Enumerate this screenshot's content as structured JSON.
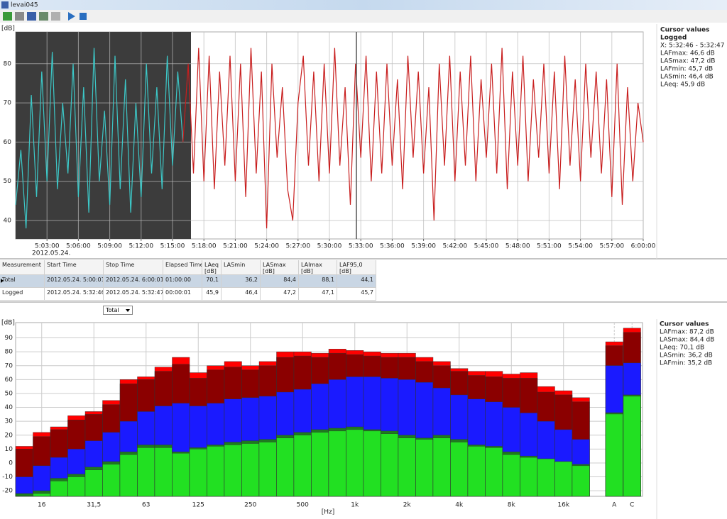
{
  "window": {
    "title": "levai045"
  },
  "chart_data": [
    {
      "type": "line",
      "y_label": "[dB]",
      "date_label": "2012.05.24.",
      "x": [
        0,
        0.5,
        1,
        1.5,
        2,
        2.5,
        3,
        3.5,
        4,
        4.5,
        5,
        5.5,
        6,
        6.5,
        7,
        7.5,
        8,
        8.5,
        9,
        9.5,
        10,
        10.5,
        11,
        11.5,
        12,
        12.5,
        13,
        13.5,
        14,
        14.5,
        15,
        15.5,
        16,
        16.5,
        17,
        17.5,
        18,
        18.5,
        19,
        19.5,
        20,
        20.5,
        21,
        21.5,
        22,
        22.5,
        23,
        23.5,
        24,
        24.5,
        25,
        25.5,
        26,
        26.5,
        27,
        27.5,
        28,
        28.5,
        29,
        29.5,
        30,
        30.5,
        31,
        31.5,
        32,
        32.5,
        33,
        33.5,
        34,
        34.5,
        35,
        35.5,
        36,
        36.5,
        37,
        37.5,
        38,
        38.5,
        39,
        39.5,
        40,
        40.5,
        41,
        41.5,
        42,
        42.5,
        43,
        43.5,
        44,
        44.5,
        45,
        45.5,
        46,
        46.5,
        47,
        47.5,
        48,
        48.5,
        49,
        49.5,
        50,
        50.5,
        51,
        51.5,
        52,
        52.5,
        53,
        53.5,
        54,
        54.5,
        55,
        55.5,
        56,
        56.5,
        57,
        57.5,
        58,
        58.5,
        59,
        59.5,
        60
      ],
      "xlim": [
        0,
        60
      ],
      "xticks": [
        {
          "value": 3,
          "label": "5:03:00"
        },
        {
          "value": 6,
          "label": "5:06:00"
        },
        {
          "value": 9,
          "label": "5:09:00"
        },
        {
          "value": 12,
          "label": "5:12:00"
        },
        {
          "value": 15,
          "label": "5:15:00"
        },
        {
          "value": 18,
          "label": "5:18:00"
        },
        {
          "value": 21,
          "label": "5:21:00"
        },
        {
          "value": 24,
          "label": "5:24:00"
        },
        {
          "value": 27,
          "label": "5:27:00"
        },
        {
          "value": 30,
          "label": "5:30:00"
        },
        {
          "value": 33,
          "label": "5:33:00"
        },
        {
          "value": 36,
          "label": "5:36:00"
        },
        {
          "value": 39,
          "label": "5:39:00"
        },
        {
          "value": 42,
          "label": "5:42:00"
        },
        {
          "value": 45,
          "label": "5:45:00"
        },
        {
          "value": 48,
          "label": "5:48:00"
        },
        {
          "value": 51,
          "label": "5:51:00"
        },
        {
          "value": 54,
          "label": "5:54:00"
        },
        {
          "value": 57,
          "label": "5:57:00"
        },
        {
          "value": 60,
          "label": "6:00:00"
        }
      ],
      "ylim": [
        35.3,
        88.1
      ],
      "yticks": [
        40,
        50,
        60,
        70,
        80
      ],
      "grid": true,
      "series": [
        {
          "color": "#3cc8c8",
          "values": [
            44,
            58,
            38,
            72,
            46,
            78,
            50,
            83,
            48,
            70,
            52,
            80,
            46,
            74,
            42,
            84,
            50,
            68,
            44,
            82,
            48,
            76,
            42,
            70,
            46,
            80,
            52,
            74,
            48,
            82,
            54,
            78,
            60,
            null,
            null,
            null,
            null,
            null,
            null,
            null,
            null,
            null,
            null,
            null,
            null,
            null,
            null,
            null,
            null,
            null,
            null,
            null,
            null,
            null,
            null,
            null,
            null,
            null,
            null,
            null,
            null,
            null,
            null,
            null,
            null,
            null,
            null,
            null,
            null,
            null,
            null,
            null,
            null,
            null,
            null,
            null,
            null,
            null,
            null,
            null,
            null,
            null,
            null,
            null,
            null,
            null,
            null,
            null,
            null,
            null,
            null,
            null,
            null,
            null,
            null,
            null,
            null,
            null,
            null,
            null,
            null,
            null,
            null,
            null,
            null,
            null,
            null,
            null,
            null,
            null,
            null,
            null,
            null,
            null,
            null,
            null,
            null,
            null,
            null,
            null,
            null
          ]
        },
        {
          "color": "#c81e1e",
          "values": [
            null,
            null,
            null,
            null,
            null,
            null,
            null,
            null,
            null,
            null,
            null,
            null,
            null,
            null,
            null,
            null,
            null,
            null,
            null,
            null,
            null,
            null,
            null,
            null,
            null,
            null,
            null,
            null,
            null,
            null,
            null,
            null,
            60,
            80,
            52,
            84,
            50,
            82,
            48,
            78,
            54,
            82,
            50,
            80,
            46,
            84,
            52,
            78,
            38,
            80,
            56,
            74,
            48,
            40,
            70,
            82,
            54,
            78,
            50,
            80,
            52,
            84,
            54,
            74,
            44,
            80,
            56,
            82,
            50,
            78,
            52,
            80,
            54,
            76,
            48,
            82,
            56,
            78,
            52,
            74,
            40,
            80,
            54,
            82,
            50,
            78,
            54,
            82,
            50,
            76,
            56,
            80,
            52,
            84,
            48,
            78,
            54,
            82,
            50,
            76,
            56,
            80,
            52,
            78,
            48,
            82,
            54,
            76,
            50,
            80,
            56,
            78,
            52,
            76,
            46,
            80,
            44,
            74,
            50,
            70,
            60
          ]
        }
      ]
    },
    {
      "type": "bar",
      "y_label": "[dB]",
      "x_label": "[Hz]",
      "categories": [
        null,
        "16",
        null,
        null,
        "31,5",
        null,
        null,
        "63",
        null,
        null,
        "125",
        null,
        null,
        "250",
        null,
        null,
        "500",
        null,
        null,
        "1k",
        null,
        null,
        "2k",
        null,
        null,
        "4k",
        null,
        null,
        "8k",
        null,
        null,
        "16k",
        null,
        "A",
        "C"
      ],
      "ylim": [
        -24,
        101
      ],
      "yticks": [
        -20,
        -10,
        0,
        10,
        20,
        30,
        40,
        50,
        60,
        70,
        80,
        90
      ],
      "grid": true,
      "series": [
        {
          "color": "#ff0000",
          "values": [
            12,
            22,
            26,
            34,
            37,
            45,
            60,
            62,
            69,
            76,
            65,
            70,
            73,
            70,
            73,
            80,
            80,
            79,
            82,
            81,
            80,
            79,
            79,
            76,
            73,
            68,
            66,
            66,
            64,
            65,
            55,
            52,
            47,
            87.2,
            97
          ]
        },
        {
          "color": "#8b0000",
          "values": [
            10,
            19,
            24,
            31,
            35,
            42,
            57,
            60,
            66,
            71,
            61,
            67,
            69,
            67,
            70,
            76,
            77,
            76,
            79,
            78,
            77,
            76,
            76,
            73,
            70,
            66,
            63,
            62,
            61,
            61,
            51,
            49,
            44,
            84.4,
            94
          ]
        },
        {
          "color": "#1a1aff",
          "values": [
            -10,
            -2,
            4,
            10,
            16,
            22,
            30,
            37,
            41,
            43,
            41,
            43,
            46,
            47,
            48,
            51,
            53,
            57,
            60,
            62,
            62,
            61,
            60,
            58,
            54,
            49,
            46,
            44,
            40,
            36,
            30,
            24,
            17,
            70.1,
            72
          ]
        },
        {
          "color": "#1e7a1e",
          "values": [
            -22,
            -20,
            -11,
            -8,
            -3,
            1,
            8,
            13,
            13,
            8,
            11,
            13,
            15,
            16,
            17,
            20,
            22,
            24,
            25,
            26,
            24,
            23,
            20,
            18,
            20,
            17,
            13,
            12,
            8,
            5,
            3,
            1,
            -1,
            36.2,
            49
          ]
        },
        {
          "color": "#22e022",
          "values": [
            -24,
            -22,
            -13,
            -10,
            -5,
            -1,
            6,
            11,
            11,
            7,
            10,
            12,
            13,
            14,
            15,
            18,
            20,
            22,
            23,
            24,
            23,
            21,
            18,
            17,
            18,
            15,
            12,
            11,
            6,
            4,
            3,
            1,
            -2,
            35.2,
            48
          ]
        }
      ]
    }
  ],
  "cursor_top": {
    "title": "Cursor values",
    "subtitle": "Logged",
    "lines": [
      {
        "text": "X: 5:32:46 - 5:32:47",
        "color": "#d02020"
      },
      {
        "text": "LAFmax: 46,6 dB",
        "color": "#d02020"
      },
      {
        "text": "LASmax: 47,2 dB",
        "color": "#8b0000"
      },
      {
        "text": "LAFmin: 45,7 dB",
        "color": "#33dd33"
      },
      {
        "text": "LASmin: 46,4 dB",
        "color": "#1a9a1a"
      },
      {
        "text": "LAeq: 45,9 dB",
        "color": "#3a3ac0"
      }
    ]
  },
  "table": {
    "header": [
      "Measurement",
      "Start Time",
      "Stop Time",
      "Elapsed Time",
      "LAeq [dB]",
      "LASmin",
      "LASmax [dB]",
      "LAImax [dB]",
      "LAF95,0 [dB]"
    ],
    "rows": [
      [
        "Total",
        "2012.05.24. 5:00:01",
        "2012.05.24. 6:00:01",
        "01:00:00",
        "70,1",
        "36,2",
        "84,4",
        "88,1",
        "44,1"
      ],
      [
        "Logged",
        "2012.05.24. 5:32:46",
        "2012.05.24. 5:32:47",
        "00:00:01",
        "45,9",
        "46,4",
        "47,2",
        "47,1",
        "45,7"
      ]
    ]
  },
  "selector": "Total",
  "cursor_bottom": {
    "title": "Cursor values",
    "lines": [
      {
        "text": "LAFmax: 87,2 dB",
        "color": "#d02020"
      },
      {
        "text": "LASmax: 84,4 dB",
        "color": "#8b0000"
      },
      {
        "text": "LAeq: 70,1 dB",
        "color": "#3a3ac0"
      },
      {
        "text": "LASmin: 36,2 dB",
        "color": "#1a9a1a"
      },
      {
        "text": "LAFmin: 35,2 dB",
        "color": "#33dd33"
      }
    ]
  }
}
